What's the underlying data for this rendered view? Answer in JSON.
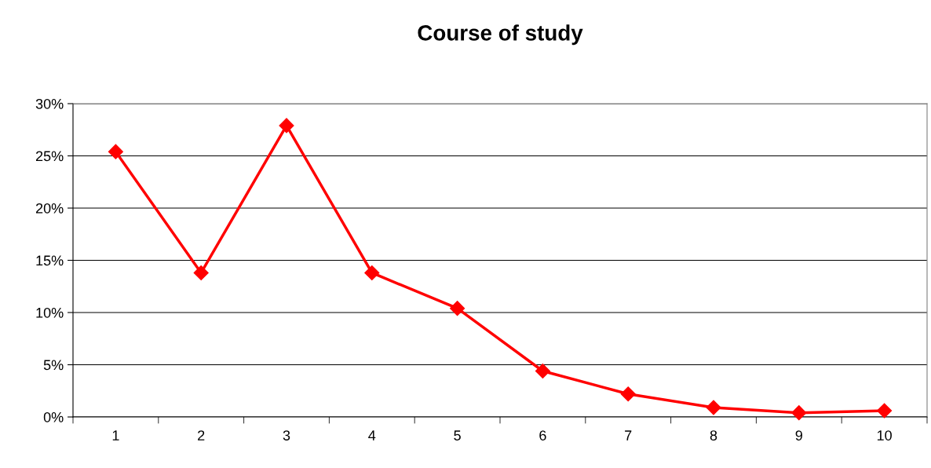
{
  "chart_data": {
    "type": "line",
    "title": "Course of study",
    "categories": [
      "1",
      "2",
      "3",
      "4",
      "5",
      "6",
      "7",
      "8",
      "9",
      "10"
    ],
    "series": [
      {
        "color": "#ff0000",
        "values": [
          25.4,
          13.8,
          27.9,
          13.8,
          10.4,
          4.4,
          2.2,
          0.9,
          0.4,
          0.6
        ]
      }
    ],
    "ylim": [
      0,
      30
    ],
    "yticks": [
      {
        "value": 0,
        "label": "0%"
      },
      {
        "value": 5,
        "label": "5%"
      },
      {
        "value": 10,
        "label": "10%"
      },
      {
        "value": 15,
        "label": "15%"
      },
      {
        "value": 20,
        "label": "20%"
      },
      {
        "value": 25,
        "label": "25%"
      },
      {
        "value": 30,
        "label": "30%"
      }
    ],
    "grid": "y",
    "marker": "diamond",
    "line_style": "solid",
    "legend": false
  }
}
